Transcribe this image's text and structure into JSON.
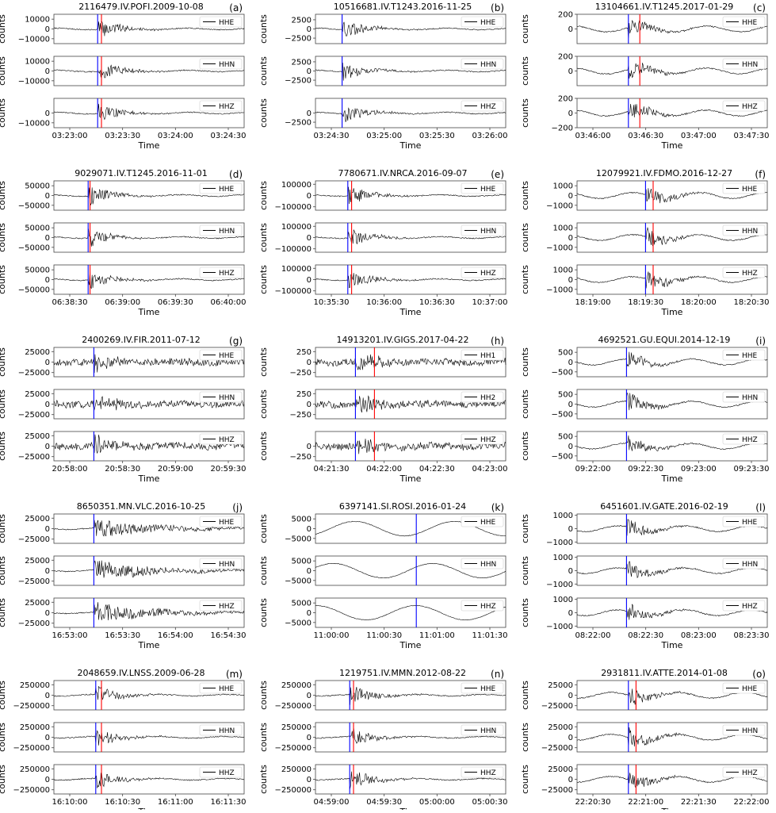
{
  "figure": {
    "y_axis_label": "counts",
    "x_axis_label": "Time",
    "trace_color": "#000000",
    "p_pick_color": "#0000ff",
    "s_pick_color": "#ff0000",
    "legend_placement": "upper-right"
  },
  "chart_data": [
    {
      "id": "a",
      "letter": "(a)",
      "title": "2116479.IV.POFI.2009-10-08",
      "type": "line",
      "channels": [
        "HHE",
        "HHN",
        "HHZ"
      ],
      "yticks": [
        [
          10000,
          0,
          -10000
        ],
        [
          10000,
          0,
          -10000
        ],
        [
          0,
          -10000
        ]
      ],
      "ylim": [
        -15000,
        15000
      ],
      "xticks": [
        "03:23:00",
        "03:23:30",
        "03:24:00",
        "03:24:30"
      ],
      "p_pick_frac": 0.23,
      "s_pick_frac": 0.25,
      "xlabel": "Time"
    },
    {
      "id": "b",
      "letter": "(b)",
      "title": "10516681.IV.T1243.2016-11-25",
      "type": "line",
      "channels": [
        "HHE",
        "HHN",
        "HHZ"
      ],
      "yticks": [
        [
          2500,
          0,
          -2500
        ],
        [
          2500,
          0,
          -2500
        ],
        [
          0,
          -2500
        ]
      ],
      "ylim": [
        -4000,
        4000
      ],
      "xticks": [
        "03:24:30",
        "03:25:00",
        "03:25:30",
        "03:26:00"
      ],
      "p_pick_frac": 0.14,
      "s_pick_frac": null,
      "xlabel": "Time"
    },
    {
      "id": "c",
      "letter": "(c)",
      "title": "13104661.IV.T1245.2017-01-29",
      "type": "line",
      "channels": [
        "HHE",
        "HHN",
        "HHZ"
      ],
      "yticks": [
        [
          200,
          0
        ],
        [
          200,
          0
        ],
        [
          200,
          0,
          -200
        ]
      ],
      "ylim": [
        -200,
        200
      ],
      "xticks": [
        "03:46:00",
        "03:46:30",
        "03:47:00",
        "03:47:30"
      ],
      "p_pick_frac": 0.27,
      "s_pick_frac": 0.33,
      "xlabel": "Time"
    },
    {
      "id": "d",
      "letter": "(d)",
      "title": "9029071.IV.T1245.2016-11-01",
      "type": "line",
      "channels": [
        "HHE",
        "HHN",
        "HHZ"
      ],
      "yticks": [
        [
          50000,
          0,
          -50000
        ],
        [
          50000,
          0,
          -50000
        ],
        [
          50000,
          0,
          -50000
        ]
      ],
      "ylim": [
        -75000,
        75000
      ],
      "xticks": [
        "06:38:30",
        "06:39:00",
        "06:39:30",
        "06:40:00"
      ],
      "p_pick_frac": 0.18,
      "s_pick_frac": 0.19,
      "xlabel": "Time"
    },
    {
      "id": "e",
      "letter": "(e)",
      "title": "7780671.IV.NRCA.2016-09-07",
      "type": "line",
      "channels": [
        "HHE",
        "HHN",
        "HHZ"
      ],
      "yticks": [
        [
          100000,
          0,
          -100000
        ],
        [
          100000,
          0,
          -100000
        ],
        [
          100000,
          0,
          -100000
        ]
      ],
      "ylim": [
        -130000,
        130000
      ],
      "xticks": [
        "10:35:30",
        "10:36:00",
        "10:36:30",
        "10:37:00"
      ],
      "p_pick_frac": 0.17,
      "s_pick_frac": 0.19,
      "xlabel": "Time"
    },
    {
      "id": "f",
      "letter": "(f)",
      "title": "12079921.IV.FDMO.2016-12-27",
      "type": "line",
      "channels": [
        "HHE",
        "HHN",
        "HHZ"
      ],
      "yticks": [
        [
          1000,
          0,
          -1000
        ],
        [
          1000,
          0,
          -1000
        ],
        [
          1000,
          0,
          -1000
        ]
      ],
      "ylim": [
        -1500,
        1500
      ],
      "xticks": [
        "18:19:00",
        "18:19:30",
        "18:20:00",
        "18:20:30"
      ],
      "p_pick_frac": 0.36,
      "s_pick_frac": 0.4,
      "xlabel": "Time"
    },
    {
      "id": "g",
      "letter": "(g)",
      "title": "2400269.IV.FIR.2011-07-12",
      "type": "line",
      "channels": [
        "HHE",
        "HHN",
        "HHZ"
      ],
      "yticks": [
        [
          25000,
          0,
          -25000
        ],
        [
          25000,
          0,
          -25000
        ],
        [
          25000,
          0,
          -25000
        ]
      ],
      "ylim": [
        -35000,
        35000
      ],
      "xticks": [
        "20:58:00",
        "20:58:30",
        "20:59:00",
        "20:59:30"
      ],
      "p_pick_frac": 0.21,
      "s_pick_frac": null,
      "xlabel": "Time"
    },
    {
      "id": "h",
      "letter": "(h)",
      "title": "14913201.IV.GIGS.2017-04-22",
      "type": "line",
      "channels": [
        "HH1",
        "HH2",
        "HHZ"
      ],
      "yticks": [
        [
          250,
          0,
          -250
        ],
        [
          250,
          0,
          -250
        ],
        [
          0,
          -250
        ]
      ],
      "ylim": [
        -350,
        350
      ],
      "xticks": [
        "04:21:30",
        "04:22:00",
        "04:22:30",
        "04:23:00"
      ],
      "p_pick_frac": 0.21,
      "s_pick_frac": 0.31,
      "xlabel": "Time"
    },
    {
      "id": "i",
      "letter": "(i)",
      "title": "4692521.GU.EQUI.2014-12-19",
      "type": "line",
      "channels": [
        "HHE",
        "HHN",
        "HHZ"
      ],
      "yticks": [
        [
          500,
          0,
          -500
        ],
        [
          500,
          0,
          -500
        ],
        [
          500,
          0,
          -500
        ]
      ],
      "ylim": [
        -750,
        750
      ],
      "xticks": [
        "09:22:00",
        "09:22:30",
        "09:23:00",
        "09:23:30"
      ],
      "p_pick_frac": 0.26,
      "s_pick_frac": null,
      "xlabel": "Time"
    },
    {
      "id": "j",
      "letter": "(j)",
      "title": "8650351.MN.VLC.2016-10-25",
      "type": "line",
      "channels": [
        "HHE",
        "HHN",
        "HHZ"
      ],
      "yticks": [
        [
          25000,
          0,
          -25000
        ],
        [
          25000,
          0,
          -25000
        ],
        [
          25000,
          0,
          -25000
        ]
      ],
      "ylim": [
        -35000,
        35000
      ],
      "xticks": [
        "16:53:00",
        "16:53:30",
        "16:54:00",
        "16:54:30"
      ],
      "p_pick_frac": 0.21,
      "s_pick_frac": null,
      "xlabel": "Time"
    },
    {
      "id": "k",
      "letter": "(k)",
      "title": "6397141.SI.ROSI.2016-01-24",
      "type": "line",
      "channels": [
        "HHE",
        "HHN",
        "HHZ"
      ],
      "yticks": [
        [
          5000,
          0,
          -5000
        ],
        [
          5000,
          0,
          -5000
        ],
        [
          5000,
          0,
          -5000
        ]
      ],
      "ylim": [
        -7500,
        7500
      ],
      "xticks": [
        "11:00:00",
        "11:00:30",
        "11:01:00",
        "11:01:30"
      ],
      "p_pick_frac": 0.53,
      "s_pick_frac": null,
      "xlabel": "Time"
    },
    {
      "id": "l",
      "letter": "(l)",
      "title": "6451601.IV.GATE.2016-02-19",
      "type": "line",
      "channels": [
        "HHE",
        "HHN",
        "HHZ"
      ],
      "yticks": [
        [
          1000,
          0,
          -1000
        ],
        [
          1000,
          0,
          -1000
        ],
        [
          1000,
          0,
          -1000
        ]
      ],
      "ylim": [
        -1100,
        1100
      ],
      "xticks": [
        "08:22:00",
        "08:22:30",
        "08:23:00",
        "08:23:30"
      ],
      "p_pick_frac": 0.26,
      "s_pick_frac": null,
      "xlabel": "Time"
    },
    {
      "id": "m",
      "letter": "(m)",
      "title": "2048659.IV.LNSS.2009-06-28",
      "type": "line",
      "channels": [
        "HHE",
        "HHN",
        "HHZ"
      ],
      "yticks": [
        [
          250000,
          0,
          -250000
        ],
        [
          250000,
          0,
          -250000
        ],
        [
          250000,
          0,
          -250000
        ]
      ],
      "ylim": [
        -350000,
        350000
      ],
      "xticks": [
        "16:10:00",
        "16:10:30",
        "16:11:00",
        "16:11:30"
      ],
      "p_pick_frac": 0.22,
      "s_pick_frac": 0.25,
      "xlabel": "Time"
    },
    {
      "id": "n",
      "letter": "(n)",
      "title": "1219751.IV.MMN.2012-08-22",
      "type": "line",
      "channels": [
        "HHE",
        "HHN",
        "HHZ"
      ],
      "yticks": [
        [
          250000,
          0,
          -250000
        ],
        [
          250000,
          0,
          -250000
        ],
        [
          250000,
          0,
          -250000
        ]
      ],
      "ylim": [
        -350000,
        350000
      ],
      "xticks": [
        "04:59:00",
        "04:59:30",
        "05:00:00",
        "05:00:30"
      ],
      "p_pick_frac": 0.18,
      "s_pick_frac": 0.2,
      "xlabel": "Time"
    },
    {
      "id": "o",
      "letter": "(o)",
      "title": "2931811.IV.ATTE.2014-01-08",
      "type": "line",
      "channels": [
        "HHE",
        "HHN",
        "HHZ"
      ],
      "yticks": [
        [
          25000,
          0,
          -25000
        ],
        [
          25000,
          0,
          -25000
        ],
        [
          25000,
          0,
          -25000
        ]
      ],
      "ylim": [
        -35000,
        35000
      ],
      "xticks": [
        "22:20:30",
        "22:21:00",
        "22:21:30",
        "22:22:00"
      ],
      "p_pick_frac": 0.27,
      "s_pick_frac": 0.31,
      "xlabel": "Time"
    }
  ]
}
